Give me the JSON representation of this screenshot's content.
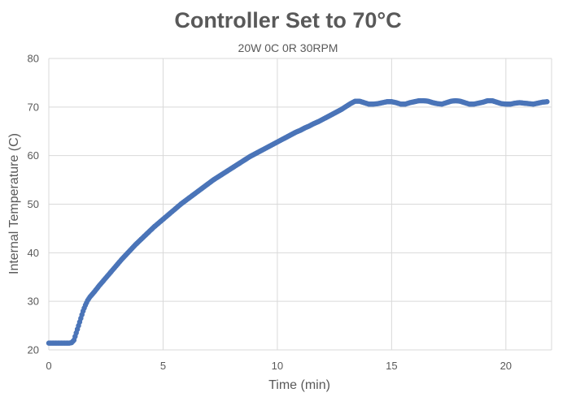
{
  "chart_data": {
    "type": "line",
    "title": "Controller Set to 70°C",
    "subtitle": "20W 0C 0R 30RPM",
    "xlabel": "Time (min)",
    "ylabel": "Internal Temperature (C)",
    "xlim": [
      0,
      22
    ],
    "ylim": [
      20,
      80
    ],
    "x_ticks": [
      0,
      5,
      10,
      15,
      20
    ],
    "y_ticks": [
      20,
      30,
      40,
      50,
      60,
      70,
      80
    ],
    "grid": "vertical and horizontal major gridlines",
    "legend": "none",
    "marker": "circle",
    "series": [
      {
        "color": "#4a74b8",
        "x": [
          0,
          0.3,
          0.6,
          0.9,
          1.0,
          1.1,
          1.2,
          1.3,
          1.4,
          1.5,
          1.6,
          1.7,
          1.8,
          2.0,
          2.2,
          2.4,
          2.6,
          2.8,
          3.0,
          3.2,
          3.4,
          3.6,
          3.8,
          4.0,
          4.2,
          4.4,
          4.6,
          4.8,
          5.0,
          5.2,
          5.4,
          5.6,
          5.8,
          6.0,
          6.2,
          6.4,
          6.6,
          6.8,
          7.0,
          7.2,
          7.4,
          7.6,
          7.8,
          8.0,
          8.2,
          8.4,
          8.6,
          8.8,
          9.0,
          9.2,
          9.4,
          9.6,
          9.8,
          10.0,
          10.2,
          10.4,
          10.6,
          10.8,
          11.0,
          11.2,
          11.4,
          11.6,
          11.8,
          12.0,
          12.2,
          12.4,
          12.6,
          12.8,
          13.0,
          13.2,
          13.4,
          13.6,
          13.8,
          14.0,
          14.2,
          14.4,
          14.6,
          14.8,
          15.0,
          15.2,
          15.4,
          15.6,
          15.8,
          16.0,
          16.2,
          16.4,
          16.6,
          16.8,
          17.0,
          17.2,
          17.4,
          17.6,
          17.8,
          18.0,
          18.2,
          18.4,
          18.6,
          18.8,
          19.0,
          19.2,
          19.4,
          19.6,
          19.8,
          20.0,
          20.2,
          20.4,
          20.6,
          20.8,
          21.0,
          21.2,
          21.4,
          21.6,
          21.8
        ],
        "y": [
          21.4,
          21.4,
          21.4,
          21.4,
          21.5,
          22.0,
          23.5,
          25.0,
          26.5,
          28.0,
          29.2,
          30.2,
          30.9,
          32.0,
          33.2,
          34.3,
          35.4,
          36.5,
          37.6,
          38.7,
          39.7,
          40.7,
          41.7,
          42.6,
          43.5,
          44.4,
          45.3,
          46.1,
          46.9,
          47.7,
          48.5,
          49.3,
          50.1,
          50.8,
          51.5,
          52.2,
          52.9,
          53.6,
          54.3,
          55.0,
          55.6,
          56.2,
          56.8,
          57.4,
          58.0,
          58.6,
          59.2,
          59.8,
          60.3,
          60.8,
          61.3,
          61.8,
          62.3,
          62.8,
          63.3,
          63.8,
          64.3,
          64.8,
          65.2,
          65.7,
          66.1,
          66.6,
          67.0,
          67.5,
          68.0,
          68.5,
          69.0,
          69.5,
          70.1,
          70.7,
          71.2,
          71.2,
          70.9,
          70.6,
          70.6,
          70.7,
          70.9,
          71.1,
          71.1,
          70.9,
          70.6,
          70.6,
          70.9,
          71.1,
          71.3,
          71.3,
          71.2,
          70.9,
          70.7,
          70.6,
          70.9,
          71.2,
          71.3,
          71.2,
          70.9,
          70.6,
          70.6,
          70.8,
          71.0,
          71.3,
          71.3,
          71.0,
          70.7,
          70.6,
          70.6,
          70.8,
          70.9,
          70.8,
          70.7,
          70.6,
          70.8,
          71.0,
          71.1
        ]
      }
    ]
  }
}
